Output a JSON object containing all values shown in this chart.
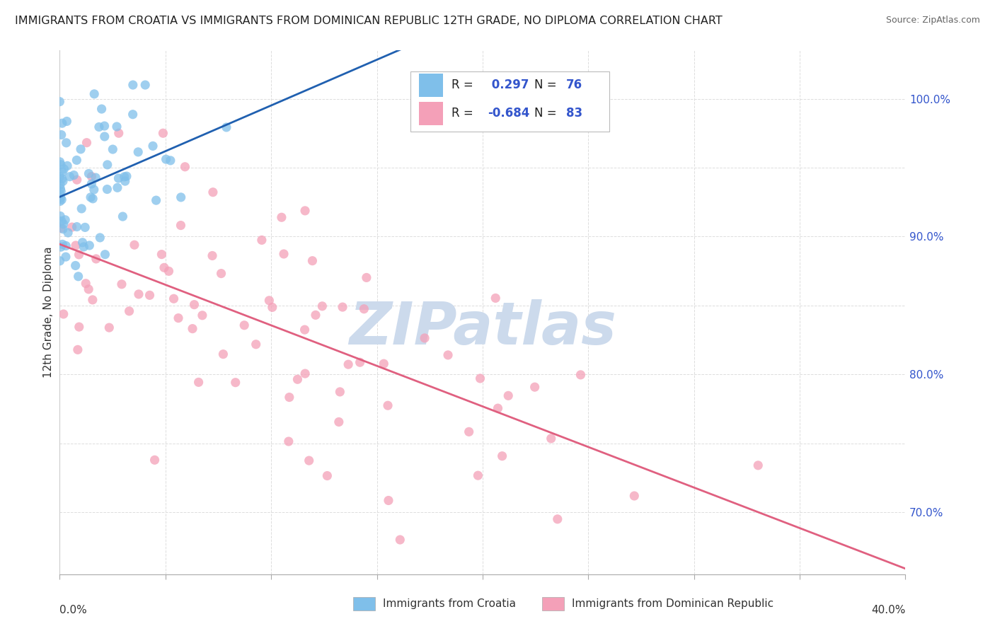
{
  "title": "IMMIGRANTS FROM CROATIA VS IMMIGRANTS FROM DOMINICAN REPUBLIC 12TH GRADE, NO DIPLOMA CORRELATION CHART",
  "source": "Source: ZipAtlas.com",
  "ylabel": "12th Grade, No Diploma",
  "xmin": 0.0,
  "xmax": 0.4,
  "ymin": 0.655,
  "ymax": 1.035,
  "croatia_R": 0.297,
  "croatia_N": 76,
  "dominican_R": -0.684,
  "dominican_N": 83,
  "croatia_color": "#7fbfea",
  "dominican_color": "#f4a0b8",
  "croatia_line_color": "#2060b0",
  "dominican_line_color": "#e06080",
  "background_color": "#ffffff",
  "grid_color": "#dddddd",
  "watermark_text": "ZIPatlas",
  "watermark_color": "#ccdaec",
  "title_color": "#222222",
  "source_color": "#666666",
  "label_color": "#333333",
  "axis_number_color": "#3355cc",
  "right_tick_color": "#3355cc"
}
